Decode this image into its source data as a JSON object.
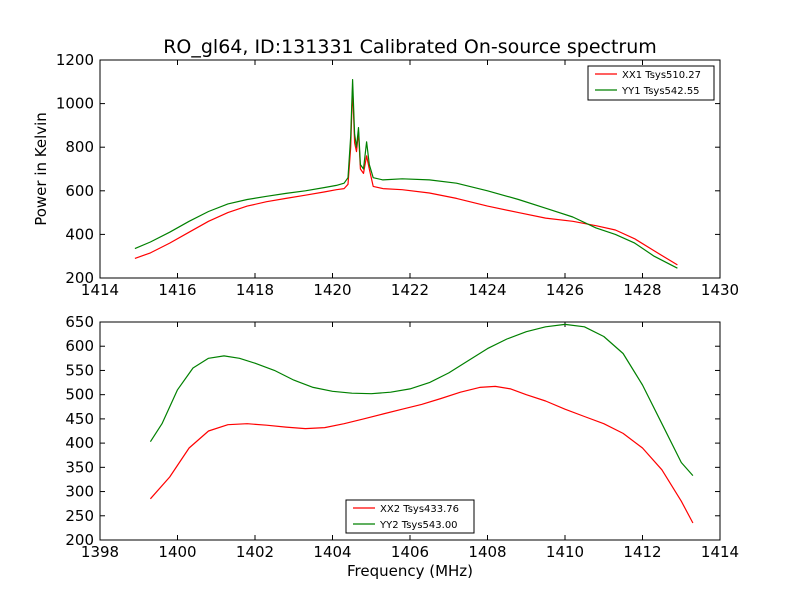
{
  "figure": {
    "title": "RO_gl64, ID:131331 Calibrated On-source spectrum",
    "xlabel": "Frequency (MHz)"
  },
  "colors": {
    "series1": "#ff0000",
    "series2": "#008000"
  },
  "chart_data": [
    {
      "type": "line",
      "ylabel": "Power in Kelvin",
      "xlabel": "",
      "xlim": [
        1414,
        1430
      ],
      "ylim": [
        200,
        1200
      ],
      "xticks": [
        1414,
        1416,
        1418,
        1420,
        1422,
        1424,
        1426,
        1428,
        1430
      ],
      "yticks": [
        200,
        400,
        600,
        800,
        1000,
        1200
      ],
      "legend": "top-right",
      "series": [
        {
          "name": "XX1 Tsys510.27",
          "color": "#ff0000",
          "points": [
            [
              1414.9,
              290
            ],
            [
              1415.3,
              315
            ],
            [
              1415.8,
              360
            ],
            [
              1416.3,
              410
            ],
            [
              1416.8,
              460
            ],
            [
              1417.3,
              500
            ],
            [
              1417.8,
              530
            ],
            [
              1418.3,
              550
            ],
            [
              1418.8,
              565
            ],
            [
              1419.3,
              580
            ],
            [
              1419.8,
              595
            ],
            [
              1420.1,
              605
            ],
            [
              1420.3,
              610
            ],
            [
              1420.4,
              630
            ],
            [
              1420.47,
              800
            ],
            [
              1420.52,
              1075
            ],
            [
              1420.57,
              820
            ],
            [
              1420.62,
              780
            ],
            [
              1420.67,
              870
            ],
            [
              1420.72,
              700
            ],
            [
              1420.8,
              680
            ],
            [
              1420.88,
              760
            ],
            [
              1420.95,
              700
            ],
            [
              1421.05,
              620
            ],
            [
              1421.3,
              610
            ],
            [
              1421.8,
              605
            ],
            [
              1422.5,
              590
            ],
            [
              1423.2,
              565
            ],
            [
              1424,
              530
            ],
            [
              1424.8,
              500
            ],
            [
              1425.5,
              475
            ],
            [
              1426.2,
              460
            ],
            [
              1426.8,
              440
            ],
            [
              1427.3,
              420
            ],
            [
              1427.8,
              380
            ],
            [
              1428.3,
              325
            ],
            [
              1428.9,
              260
            ]
          ]
        },
        {
          "name": "YY1 Tsys542.55",
          "color": "#008000",
          "points": [
            [
              1414.9,
              335
            ],
            [
              1415.3,
              365
            ],
            [
              1415.8,
              410
            ],
            [
              1416.3,
              460
            ],
            [
              1416.8,
              505
            ],
            [
              1417.3,
              540
            ],
            [
              1417.8,
              560
            ],
            [
              1418.3,
              575
            ],
            [
              1418.8,
              588
            ],
            [
              1419.3,
              600
            ],
            [
              1419.8,
              615
            ],
            [
              1420.1,
              625
            ],
            [
              1420.3,
              635
            ],
            [
              1420.4,
              660
            ],
            [
              1420.47,
              850
            ],
            [
              1420.52,
              1110
            ],
            [
              1420.57,
              860
            ],
            [
              1420.62,
              800
            ],
            [
              1420.67,
              890
            ],
            [
              1420.72,
              720
            ],
            [
              1420.8,
              700
            ],
            [
              1420.88,
              825
            ],
            [
              1420.95,
              720
            ],
            [
              1421.05,
              660
            ],
            [
              1421.3,
              650
            ],
            [
              1421.8,
              655
            ],
            [
              1422.5,
              650
            ],
            [
              1423.2,
              635
            ],
            [
              1424,
              600
            ],
            [
              1424.8,
              560
            ],
            [
              1425.5,
              520
            ],
            [
              1426.2,
              480
            ],
            [
              1426.8,
              430
            ],
            [
              1427.3,
              400
            ],
            [
              1427.8,
              360
            ],
            [
              1428.3,
              300
            ],
            [
              1428.9,
              245
            ]
          ]
        }
      ]
    },
    {
      "type": "line",
      "ylabel": "",
      "xlabel": "Frequency (MHz)",
      "xlim": [
        1398,
        1414
      ],
      "ylim": [
        200,
        650
      ],
      "xticks": [
        1398,
        1400,
        1402,
        1404,
        1406,
        1408,
        1410,
        1412,
        1414
      ],
      "yticks": [
        200,
        250,
        300,
        350,
        400,
        450,
        500,
        550,
        600,
        650
      ],
      "legend": "bottom-center",
      "series": [
        {
          "name": "XX2 Tsys433.76",
          "color": "#ff0000",
          "points": [
            [
              1399.3,
              285
            ],
            [
              1399.8,
              330
            ],
            [
              1400.3,
              390
            ],
            [
              1400.8,
              425
            ],
            [
              1401.3,
              438
            ],
            [
              1401.8,
              440
            ],
            [
              1402.3,
              437
            ],
            [
              1402.8,
              433
            ],
            [
              1403.3,
              430
            ],
            [
              1403.8,
              432
            ],
            [
              1404.3,
              440
            ],
            [
              1404.8,
              450
            ],
            [
              1405.3,
              460
            ],
            [
              1405.8,
              470
            ],
            [
              1406.3,
              480
            ],
            [
              1406.8,
              492
            ],
            [
              1407.3,
              505
            ],
            [
              1407.8,
              515
            ],
            [
              1408.2,
              517
            ],
            [
              1408.6,
              512
            ],
            [
              1409,
              500
            ],
            [
              1409.5,
              487
            ],
            [
              1410,
              470
            ],
            [
              1410.5,
              455
            ],
            [
              1411,
              440
            ],
            [
              1411.5,
              420
            ],
            [
              1412,
              390
            ],
            [
              1412.5,
              345
            ],
            [
              1413,
              280
            ],
            [
              1413.3,
              235
            ]
          ]
        },
        {
          "name": "YY2 Tsys543.00",
          "color": "#008000",
          "points": [
            [
              1399.3,
              403
            ],
            [
              1399.6,
              440
            ],
            [
              1400,
              510
            ],
            [
              1400.4,
              555
            ],
            [
              1400.8,
              575
            ],
            [
              1401.2,
              580
            ],
            [
              1401.6,
              575
            ],
            [
              1402,
              565
            ],
            [
              1402.5,
              550
            ],
            [
              1403,
              530
            ],
            [
              1403.5,
              515
            ],
            [
              1404,
              507
            ],
            [
              1404.5,
              503
            ],
            [
              1405,
              502
            ],
            [
              1405.5,
              505
            ],
            [
              1406,
              512
            ],
            [
              1406.5,
              525
            ],
            [
              1407,
              545
            ],
            [
              1407.5,
              570
            ],
            [
              1408,
              595
            ],
            [
              1408.5,
              615
            ],
            [
              1409,
              630
            ],
            [
              1409.5,
              640
            ],
            [
              1410,
              645
            ],
            [
              1410.5,
              640
            ],
            [
              1411,
              620
            ],
            [
              1411.5,
              585
            ],
            [
              1412,
              520
            ],
            [
              1412.5,
              440
            ],
            [
              1413,
              360
            ],
            [
              1413.3,
              333
            ]
          ]
        }
      ]
    }
  ]
}
